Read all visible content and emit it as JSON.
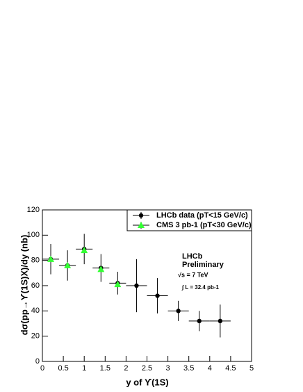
{
  "chart_data": {
    "type": "scatter",
    "xlabel": "y of ϒ(1S)",
    "ylabel": "dσ(pp→ϒ(1S)X)/dy (nb)",
    "xlim": [
      0,
      5
    ],
    "xticks": [
      0,
      0.5,
      1,
      1.5,
      2,
      2.5,
      3,
      3.5,
      4,
      4.5,
      5
    ],
    "ylim": [
      0,
      120
    ],
    "yticks": [
      0,
      20,
      40,
      60,
      80,
      100,
      120
    ],
    "legend": "top-right",
    "annotations": [
      "LHCb",
      "Preliminary",
      "√s = 7 TeV",
      "∫ L = 32.4 pb-1"
    ],
    "series": [
      {
        "name": "LHCb data (pT<15 GeV/c)",
        "color": "#000000",
        "marker": "circle",
        "x": [
          0.2,
          0.6,
          1.0,
          1.4,
          1.8,
          2.25,
          2.75,
          3.25,
          3.75,
          4.25
        ],
        "x_errors": [
          0.2,
          0.2,
          0.2,
          0.2,
          0.2,
          0.25,
          0.25,
          0.25,
          0.25,
          0.25
        ],
        "values": [
          81,
          76,
          89,
          74,
          62,
          60,
          52,
          40,
          32,
          32
        ],
        "errors": [
          12,
          12,
          12,
          11,
          9,
          21,
          14,
          8,
          8,
          13
        ]
      },
      {
        "name": "CMS 3 pb-1 (pT<30 GeV/c)",
        "color": "#33ff33",
        "marker": "triangle",
        "x": [
          0.2,
          0.6,
          1.0,
          1.4,
          1.8
        ],
        "values": [
          81,
          76,
          88,
          73,
          61
        ]
      }
    ]
  }
}
